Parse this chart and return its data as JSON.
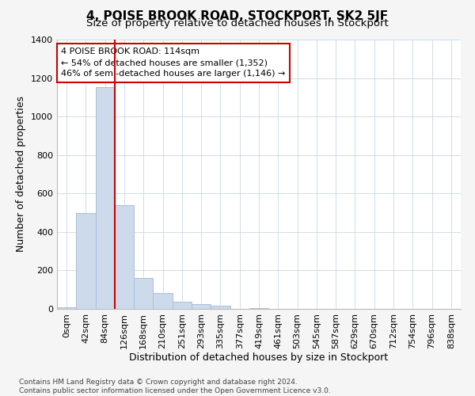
{
  "title": "4, POISE BROOK ROAD, STOCKPORT, SK2 5JF",
  "subtitle": "Size of property relative to detached houses in Stockport",
  "xlabel": "Distribution of detached houses by size in Stockport",
  "ylabel": "Number of detached properties",
  "categories": [
    "0sqm",
    "42sqm",
    "84sqm",
    "126sqm",
    "168sqm",
    "210sqm",
    "251sqm",
    "293sqm",
    "335sqm",
    "377sqm",
    "419sqm",
    "461sqm",
    "503sqm",
    "545sqm",
    "587sqm",
    "629sqm",
    "670sqm",
    "712sqm",
    "754sqm",
    "796sqm",
    "838sqm"
  ],
  "values": [
    10,
    500,
    1155,
    540,
    160,
    83,
    37,
    23,
    15,
    0,
    5,
    0,
    0,
    0,
    0,
    0,
    0,
    0,
    0,
    0,
    0
  ],
  "bar_color": "#ccdaeb",
  "bar_edge_color": "#a8c0d8",
  "vline_x": 2.5,
  "vline_color": "#cc0000",
  "annotation_text": "4 POISE BROOK ROAD: 114sqm\n← 54% of detached houses are smaller (1,352)\n46% of semi-detached houses are larger (1,146) →",
  "annotation_box_color": "#ffffff",
  "annotation_box_edge": "#cc0000",
  "ylim": [
    0,
    1400
  ],
  "yticks": [
    0,
    200,
    400,
    600,
    800,
    1000,
    1200,
    1400
  ],
  "footer_line1": "Contains HM Land Registry data © Crown copyright and database right 2024.",
  "footer_line2": "Contains public sector information licensed under the Open Government Licence v3.0.",
  "bg_color": "#f5f5f5",
  "plot_bg_color": "#ffffff",
  "grid_color": "#d0dce8",
  "title_fontsize": 11,
  "subtitle_fontsize": 9.5,
  "axis_label_fontsize": 9,
  "tick_fontsize": 8,
  "annotation_fontsize": 8,
  "footer_fontsize": 6.5
}
